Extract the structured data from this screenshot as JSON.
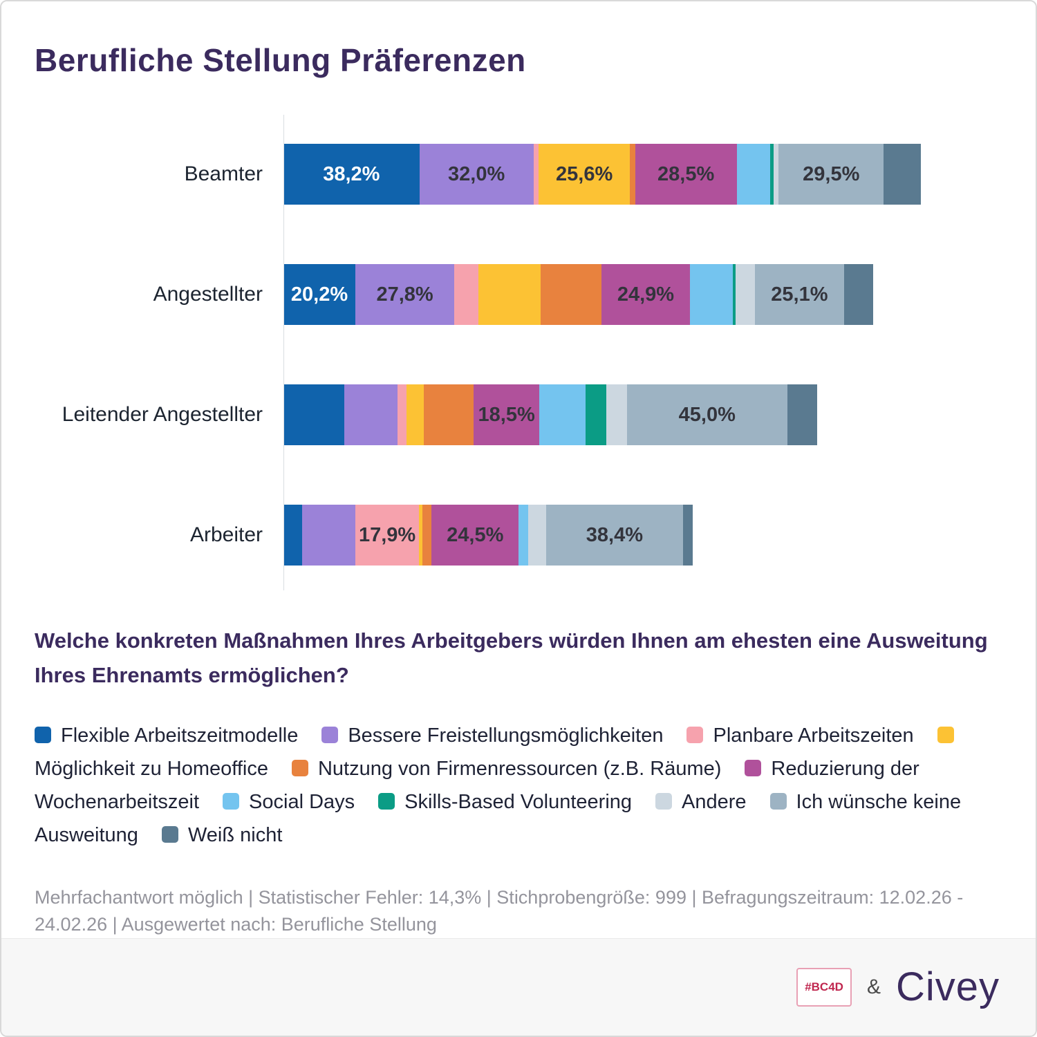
{
  "question": "Welche konkreten Maßnahmen Ihres Arbeitgebers würden Ihnen am ehesten eine Ausweitung Ihres Ehrenamts ermöglichen?",
  "meta": "Mehrfachantwort möglich | Statistischer Fehler: 14,3% | Stichprobengröße: 999 | Befragungszeitraum: 12.02.26 - 24.02.26 | Ausgewertet nach: Berufliche Stellung",
  "footer": {
    "badge": "#BC4D",
    "amp": "&",
    "brand": "Civey"
  },
  "chart_data": {
    "type": "bar",
    "variant": "horizontal-stacked",
    "title": "Berufliche Stellung Präferenzen",
    "legend_position": "bottom",
    "legend": [
      {
        "id": "flexible-arbeitszeitmodelle",
        "label": "Flexible Arbeitszeitmodelle",
        "color": "#1063ac"
      },
      {
        "id": "bessere-freistellungsmoeglichkeiten",
        "label": "Bessere Freistellungsmöglichkeiten",
        "color": "#9b82d8"
      },
      {
        "id": "planbare-arbeitszeiten",
        "label": "Planbare Arbeitszeiten",
        "color": "#f6a2ad"
      },
      {
        "id": "moeglichkeit-zu-homeoffice",
        "label": "Möglichkeit zu Homeoffice",
        "color": "#fcc234"
      },
      {
        "id": "nutzung-von-firmenressourcen",
        "label": "Nutzung von Firmenressourcen (z.B. Räume)",
        "color": "#e8823e"
      },
      {
        "id": "reduzierung-der-wochenarbeitszeit",
        "label": "Reduzierung der Wochenarbeitszeit",
        "color": "#b0519b"
      },
      {
        "id": "social-days",
        "label": "Social Days",
        "color": "#74c4ef"
      },
      {
        "id": "skills-based-volunteering",
        "label": "Skills-Based Volunteering",
        "color": "#0b9c85"
      },
      {
        "id": "andere",
        "label": "Andere",
        "color": "#ccd7e0"
      },
      {
        "id": "ich-wuensche-keine-ausweitung",
        "label": "Ich wünsche keine Ausweitung",
        "color": "#9db3c3"
      },
      {
        "id": "weiss-nicht",
        "label": "Weiß nicht",
        "color": "#5a7a90"
      }
    ],
    "value_unit": "%",
    "note": "values without printed labels are estimated from bar segment widths",
    "rows": [
      {
        "category": "Beamter",
        "values": [
          38.2,
          32.0,
          1.5,
          25.6,
          1.5,
          28.5,
          9.5,
          0.8,
          1.5,
          29.5,
          10.5
        ],
        "labels": {
          "0": "38,2%",
          "1": "32,0%",
          "3": "25,6%",
          "5": "28,5%",
          "9": "29,5%"
        }
      },
      {
        "category": "Angestellter",
        "values": [
          20.2,
          27.8,
          6.8,
          17.5,
          17.0,
          24.9,
          12.0,
          0.8,
          5.4,
          25.1,
          8.2
        ],
        "labels": {
          "0": "20,2%",
          "1": "27,8%",
          "5": "24,9%",
          "9": "25,1%"
        }
      },
      {
        "category": "Leitender Angestellter",
        "values": [
          17.0,
          15.0,
          2.5,
          4.9,
          14.0,
          18.5,
          13.0,
          5.8,
          5.8,
          45.0,
          8.4
        ],
        "labels": {
          "5": "18,5%",
          "9": "45,0%"
        }
      },
      {
        "category": "Arbeiter",
        "values": [
          5.2,
          15.0,
          17.9,
          1.0,
          2.5,
          24.5,
          2.7,
          0,
          5.0,
          38.4,
          2.7
        ],
        "labels": {
          "2": "17,9%",
          "5": "24,5%",
          "9": "38,4%"
        }
      }
    ]
  }
}
